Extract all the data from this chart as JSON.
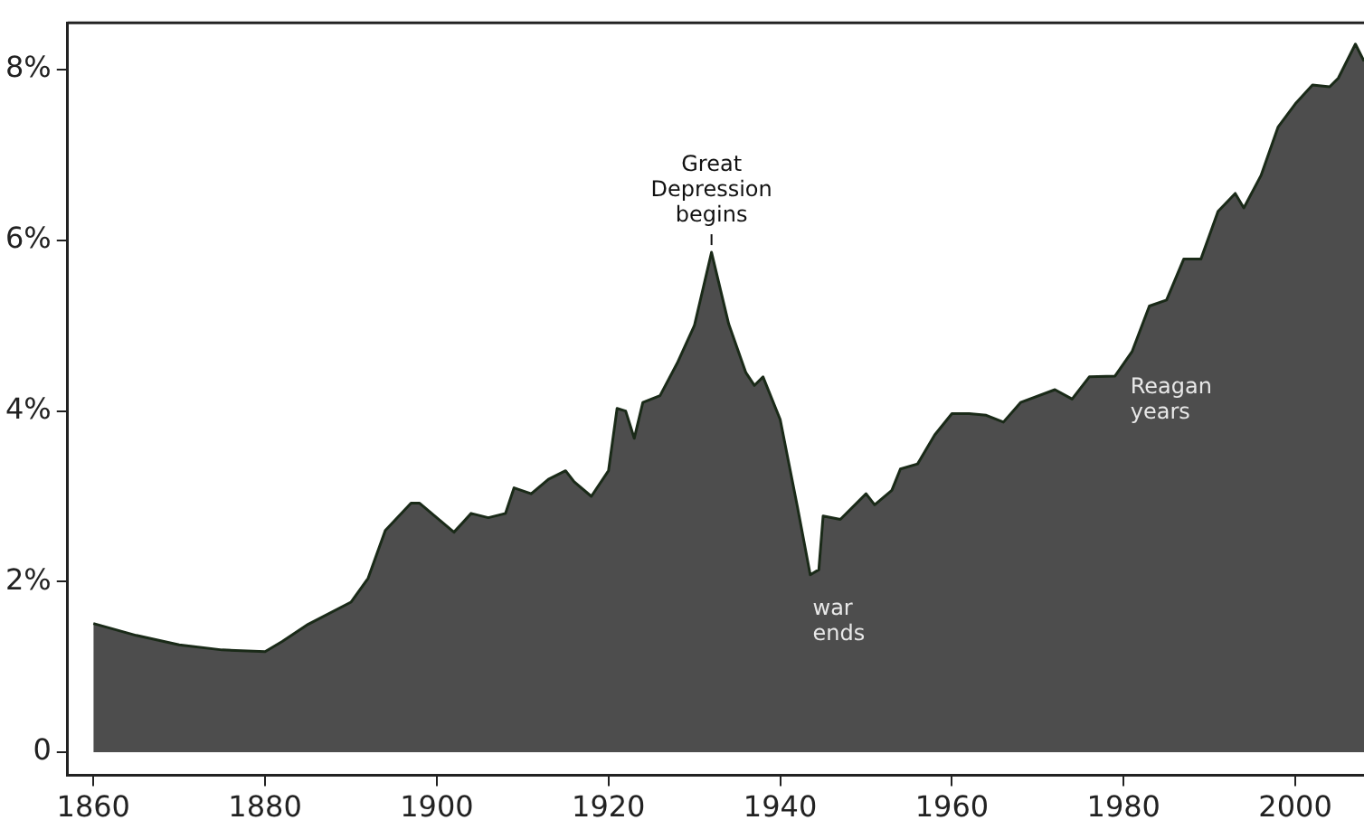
{
  "chart_data": {
    "type": "area",
    "x": [
      1860,
      1865,
      1870,
      1875,
      1880,
      1882,
      1885,
      1890,
      1892,
      1894,
      1897,
      1898,
      1902,
      1904,
      1906,
      1908,
      1909,
      1911,
      1913,
      1915,
      1916,
      1918,
      1920,
      1921,
      1922,
      1923,
      1924,
      1926,
      1928,
      1930,
      1932,
      1934,
      1936,
      1937,
      1938,
      1940,
      1942,
      1943.5,
      1944.5,
      1945,
      1947,
      1950,
      1951,
      1953,
      1954,
      1956,
      1958,
      1960,
      1962,
      1964,
      1966,
      1968,
      1972,
      1974,
      1976,
      1979,
      1981,
      1983,
      1985,
      1987,
      1989,
      1991,
      1993,
      1994,
      1996,
      1998,
      2000,
      2002,
      2004,
      2005,
      2007,
      2008
    ],
    "series": [
      {
        "color": "#4d4d4d",
        "values": [
          1.51,
          1.37,
          1.26,
          1.2,
          1.18,
          1.3,
          1.5,
          1.76,
          2.04,
          2.6,
          2.92,
          2.92,
          2.58,
          2.8,
          2.75,
          2.8,
          3.1,
          3.03,
          3.2,
          3.3,
          3.17,
          3.0,
          3.3,
          4.03,
          4.0,
          3.68,
          4.1,
          4.18,
          4.56,
          5.0,
          5.86,
          5.02,
          4.45,
          4.3,
          4.4,
          3.9,
          2.88,
          2.08,
          2.14,
          2.77,
          2.73,
          3.03,
          2.9,
          3.07,
          3.32,
          3.38,
          3.72,
          3.97,
          3.97,
          3.95,
          3.87,
          4.1,
          4.25,
          4.14,
          4.4,
          4.41,
          4.7,
          5.23,
          5.3,
          5.78,
          5.78,
          6.34,
          6.55,
          6.38,
          6.76,
          7.33,
          7.6,
          7.82,
          7.8,
          7.9,
          8.3,
          8.1
        ]
      }
    ],
    "xlim": [
      1857,
      2008
    ],
    "xticks": [
      1860,
      1880,
      1900,
      1920,
      1940,
      1960,
      1980,
      2000
    ],
    "ylim": [
      -0.27,
      8.55
    ],
    "yticks": [
      {
        "value": 0,
        "label": "0"
      },
      {
        "value": 2,
        "label": "2%"
      },
      {
        "value": 4,
        "label": "4%"
      },
      {
        "value": 6,
        "label": "6%"
      },
      {
        "value": 8,
        "label": "8%"
      }
    ],
    "grid": false,
    "legend": false,
    "marker": "none",
    "annotations": [
      {
        "text": "Great\nDepression\nbegins",
        "x": 1932,
        "y": 5.86
      },
      {
        "text": "war\nends",
        "x": 1944,
        "y": 2.1
      },
      {
        "text": "Reagan\nyears",
        "x": 1981,
        "y": 4.7
      }
    ]
  }
}
